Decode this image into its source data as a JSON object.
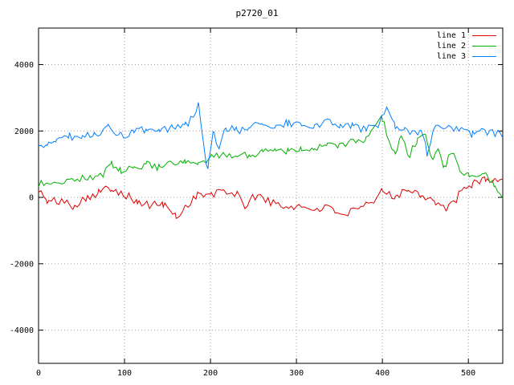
{
  "title": "p2720_01",
  "chart_data": {
    "type": "line",
    "title": "p2720_01",
    "xlabel": "",
    "ylabel": "",
    "x_range": [
      0,
      540
    ],
    "y_range": [
      -5000,
      5100
    ],
    "x_ticks": [
      0,
      100,
      200,
      300,
      400,
      500
    ],
    "y_ticks": [
      -4000,
      -2000,
      0,
      2000,
      4000
    ],
    "grid": true,
    "legend_position": "top-right",
    "series": [
      {
        "name": "line 1",
        "color": "#e00000",
        "noise_amplitude": 130,
        "seed": 101,
        "keypoints": [
          [
            0,
            250
          ],
          [
            10,
            -150
          ],
          [
            25,
            -100
          ],
          [
            40,
            -250
          ],
          [
            55,
            0
          ],
          [
            70,
            150
          ],
          [
            85,
            300
          ],
          [
            100,
            100
          ],
          [
            115,
            -150
          ],
          [
            130,
            -250
          ],
          [
            145,
            -200
          ],
          [
            160,
            -600
          ],
          [
            170,
            -300
          ],
          [
            185,
            100
          ],
          [
            200,
            50
          ],
          [
            215,
            200
          ],
          [
            230,
            100
          ],
          [
            240,
            -250
          ],
          [
            255,
            100
          ],
          [
            270,
            -150
          ],
          [
            285,
            -300
          ],
          [
            300,
            -250
          ],
          [
            315,
            -350
          ],
          [
            330,
            -300
          ],
          [
            345,
            -400
          ],
          [
            360,
            -500
          ],
          [
            375,
            -350
          ],
          [
            390,
            -150
          ],
          [
            400,
            200
          ],
          [
            415,
            50
          ],
          [
            430,
            250
          ],
          [
            445,
            100
          ],
          [
            460,
            -100
          ],
          [
            475,
            -400
          ],
          [
            490,
            100
          ],
          [
            505,
            400
          ],
          [
            520,
            600
          ],
          [
            530,
            450
          ],
          [
            540,
            550
          ]
        ]
      },
      {
        "name": "line 2",
        "color": "#00b000",
        "noise_amplitude": 110,
        "seed": 202,
        "keypoints": [
          [
            0,
            400
          ],
          [
            15,
            450
          ],
          [
            30,
            500
          ],
          [
            45,
            550
          ],
          [
            60,
            600
          ],
          [
            75,
            700
          ],
          [
            85,
            1000
          ],
          [
            95,
            800
          ],
          [
            110,
            850
          ],
          [
            125,
            1000
          ],
          [
            140,
            900
          ],
          [
            155,
            1000
          ],
          [
            170,
            1050
          ],
          [
            185,
            950
          ],
          [
            200,
            1200
          ],
          [
            215,
            1250
          ],
          [
            230,
            1300
          ],
          [
            245,
            1250
          ],
          [
            260,
            1400
          ],
          [
            275,
            1450
          ],
          [
            290,
            1400
          ],
          [
            305,
            1500
          ],
          [
            320,
            1450
          ],
          [
            335,
            1550
          ],
          [
            350,
            1600
          ],
          [
            365,
            1650
          ],
          [
            380,
            1750
          ],
          [
            390,
            2000
          ],
          [
            400,
            2400
          ],
          [
            408,
            1700
          ],
          [
            415,
            1300
          ],
          [
            422,
            1900
          ],
          [
            430,
            1200
          ],
          [
            440,
            1700
          ],
          [
            450,
            1900
          ],
          [
            458,
            1100
          ],
          [
            465,
            1500
          ],
          [
            472,
            900
          ],
          [
            480,
            1400
          ],
          [
            490,
            800
          ],
          [
            500,
            700
          ],
          [
            510,
            550
          ],
          [
            520,
            650
          ],
          [
            530,
            350
          ],
          [
            540,
            -50
          ]
        ]
      },
      {
        "name": "line 3",
        "color": "#0080ff",
        "noise_amplitude": 120,
        "seed": 303,
        "keypoints": [
          [
            0,
            1450
          ],
          [
            10,
            1600
          ],
          [
            20,
            1750
          ],
          [
            35,
            1850
          ],
          [
            50,
            1800
          ],
          [
            65,
            1900
          ],
          [
            80,
            2100
          ],
          [
            95,
            1850
          ],
          [
            110,
            1950
          ],
          [
            125,
            2050
          ],
          [
            140,
            1950
          ],
          [
            155,
            2100
          ],
          [
            170,
            2150
          ],
          [
            180,
            2400
          ],
          [
            186,
            2900
          ],
          [
            192,
            1600
          ],
          [
            197,
            800
          ],
          [
            203,
            2000
          ],
          [
            210,
            1400
          ],
          [
            218,
            2100
          ],
          [
            230,
            2000
          ],
          [
            245,
            2150
          ],
          [
            260,
            2250
          ],
          [
            275,
            2100
          ],
          [
            290,
            2250
          ],
          [
            305,
            2150
          ],
          [
            320,
            2100
          ],
          [
            335,
            2300
          ],
          [
            350,
            2200
          ],
          [
            365,
            2150
          ],
          [
            380,
            2050
          ],
          [
            395,
            2200
          ],
          [
            405,
            2600
          ],
          [
            415,
            2100
          ],
          [
            425,
            2000
          ],
          [
            435,
            1900
          ],
          [
            445,
            2000
          ],
          [
            452,
            1350
          ],
          [
            460,
            2050
          ],
          [
            475,
            2150
          ],
          [
            490,
            2000
          ],
          [
            505,
            1900
          ],
          [
            515,
            2100
          ],
          [
            525,
            1950
          ],
          [
            540,
            1900
          ]
        ]
      }
    ],
    "colors": {
      "border": "#000000",
      "grid": "#a0a0a0",
      "background": "#ffffff"
    }
  }
}
